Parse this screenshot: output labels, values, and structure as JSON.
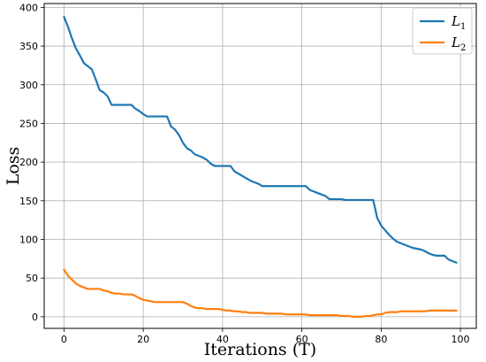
{
  "chart_data": {
    "type": "line",
    "xlabel": "Iterations (T)",
    "ylabel": "Loss",
    "xlim": [
      -5,
      104
    ],
    "ylim": [
      -15,
      405
    ],
    "xticks": [
      0,
      20,
      40,
      60,
      80,
      100
    ],
    "yticks": [
      0,
      50,
      100,
      150,
      200,
      250,
      300,
      350,
      400
    ],
    "grid": true,
    "legend": "top-right",
    "colors": {
      "L1": "#1f77b4",
      "L2": "#ff7f0e"
    },
    "series": [
      {
        "name": "L1",
        "label_base": "L",
        "label_sub": "1",
        "color": "#1f77b4",
        "x": [
          0,
          1,
          2,
          3,
          4,
          5,
          6,
          7,
          8,
          9,
          10,
          11,
          12,
          13,
          14,
          15,
          16,
          17,
          18,
          19,
          20,
          21,
          22,
          23,
          24,
          25,
          26,
          27,
          28,
          29,
          30,
          31,
          32,
          33,
          34,
          35,
          36,
          37,
          38,
          39,
          40,
          41,
          42,
          43,
          44,
          45,
          46,
          47,
          48,
          49,
          50,
          51,
          52,
          53,
          54,
          55,
          56,
          57,
          58,
          59,
          60,
          61,
          62,
          63,
          64,
          65,
          66,
          67,
          68,
          69,
          70,
          71,
          72,
          73,
          74,
          75,
          76,
          77,
          78,
          79,
          80,
          81,
          82,
          83,
          84,
          85,
          86,
          87,
          88,
          89,
          90,
          91,
          92,
          93,
          94,
          95,
          96,
          97,
          98,
          99
        ],
        "y": [
          388,
          375,
          360,
          347,
          338,
          328,
          324,
          320,
          307,
          293,
          290,
          285,
          274,
          274,
          274,
          274,
          274,
          274,
          269,
          266,
          262,
          259,
          259,
          259,
          259,
          259,
          259,
          246,
          242,
          235,
          225,
          218,
          215,
          210,
          208,
          206,
          203,
          198,
          195,
          195,
          195,
          195,
          195,
          188,
          185,
          182,
          179,
          176,
          174,
          172,
          169,
          169,
          169,
          169,
          169,
          169,
          169,
          169,
          169,
          169,
          169,
          169,
          164,
          162,
          160,
          158,
          156,
          152,
          152,
          152,
          152,
          151,
          151,
          151,
          151,
          151,
          151,
          151,
          151,
          128,
          118,
          112,
          106,
          101,
          97,
          95,
          93,
          91,
          89,
          88,
          87,
          85,
          82,
          80,
          79,
          79,
          79,
          74,
          72,
          70
        ]
      },
      {
        "name": "L2",
        "label_base": "L",
        "label_sub": "2",
        "color": "#ff7f0e",
        "x": [
          0,
          1,
          2,
          3,
          4,
          5,
          6,
          7,
          8,
          9,
          10,
          11,
          12,
          13,
          14,
          15,
          16,
          17,
          18,
          19,
          20,
          21,
          22,
          23,
          24,
          25,
          26,
          27,
          28,
          29,
          30,
          31,
          32,
          33,
          34,
          35,
          36,
          37,
          38,
          39,
          40,
          41,
          42,
          43,
          44,
          45,
          46,
          47,
          48,
          49,
          50,
          51,
          52,
          53,
          54,
          55,
          56,
          57,
          58,
          59,
          60,
          61,
          62,
          63,
          64,
          65,
          66,
          67,
          68,
          69,
          70,
          71,
          72,
          73,
          74,
          75,
          76,
          77,
          78,
          79,
          80,
          81,
          82,
          83,
          84,
          85,
          86,
          87,
          88,
          89,
          90,
          91,
          92,
          93,
          94,
          95,
          96,
          97,
          98,
          99
        ],
        "y": [
          61,
          53,
          48,
          43,
          40,
          38,
          36,
          36,
          36,
          36,
          34,
          33,
          31,
          30,
          30,
          29,
          29,
          29,
          27,
          24,
          22,
          21,
          20,
          19,
          19,
          19,
          19,
          19,
          19,
          19,
          19,
          17,
          14,
          12,
          11,
          11,
          10,
          10,
          10,
          10,
          9,
          8,
          8,
          7,
          7,
          6,
          6,
          5,
          5,
          5,
          5,
          4,
          4,
          4,
          4,
          4,
          3,
          3,
          3,
          3,
          3,
          3,
          2,
          2,
          2,
          2,
          2,
          2,
          2,
          2,
          1,
          1,
          1,
          0,
          0,
          0,
          1,
          1,
          2,
          3,
          3,
          5,
          6,
          6,
          6,
          7,
          7,
          7,
          7,
          7,
          7,
          7,
          8,
          8,
          8,
          8,
          8,
          8,
          8,
          8
        ]
      }
    ]
  }
}
